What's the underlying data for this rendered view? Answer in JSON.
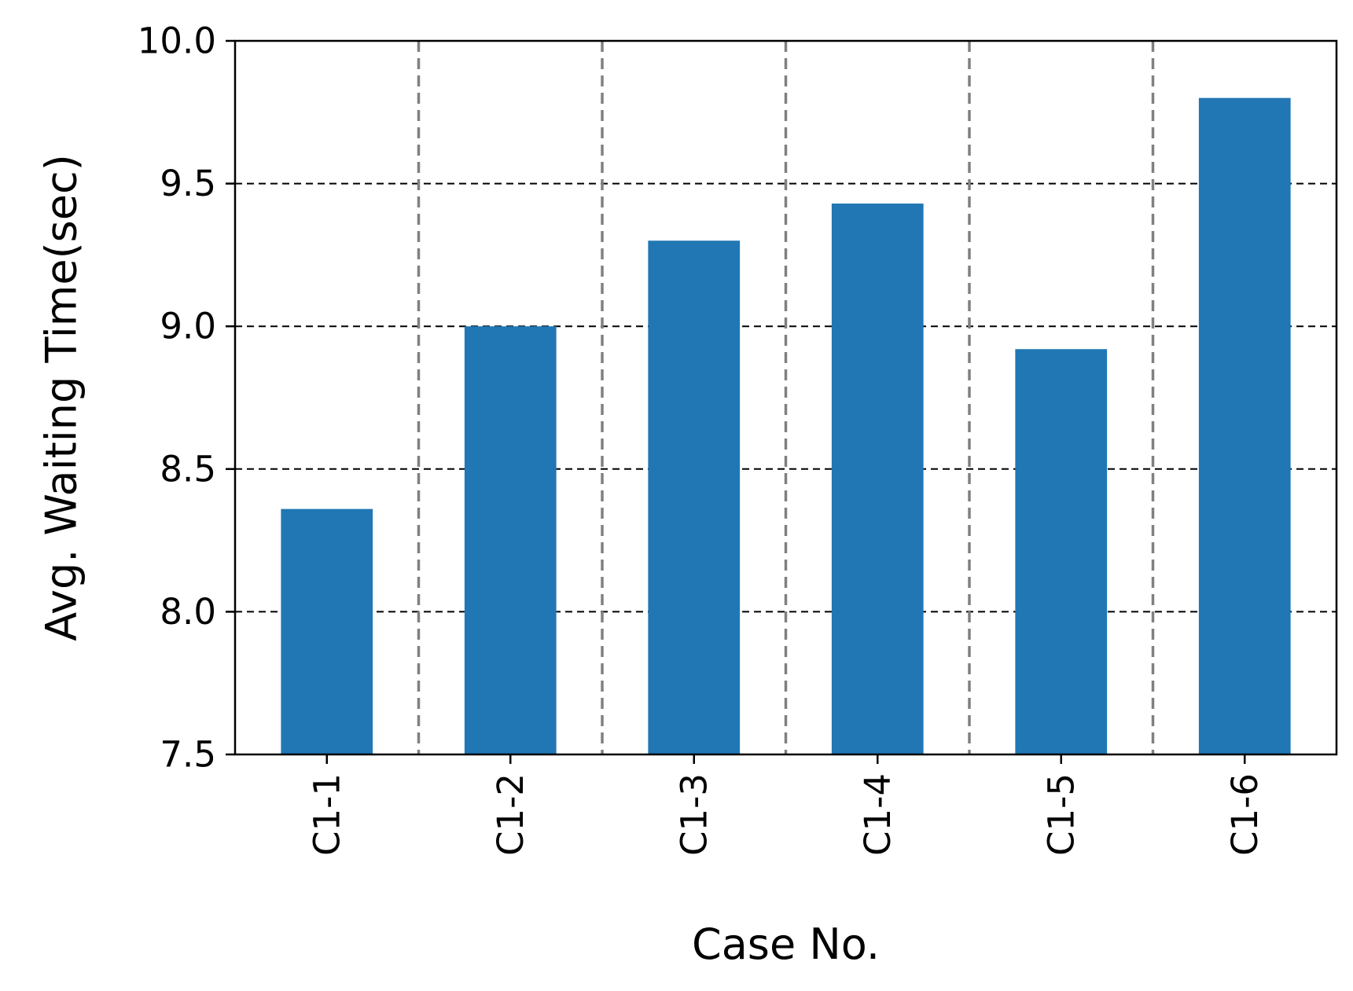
{
  "chart_data": {
    "type": "bar",
    "categories": [
      "C1-1",
      "C1-2",
      "C1-3",
      "C1-4",
      "C1-5",
      "C1-6"
    ],
    "values": [
      8.36,
      9.0,
      9.3,
      9.43,
      8.92,
      9.8
    ],
    "title": "",
    "xlabel": "Case No.",
    "ylabel": "Avg. Waiting Time(sec)",
    "ylim": [
      7.5,
      10.0
    ],
    "yticks": [
      "7.5",
      "8.0",
      "8.5",
      "9.0",
      "9.5",
      "10.0"
    ],
    "grid": {
      "horizontal": "dashed",
      "vertical_separators": "dashed"
    },
    "colors": {
      "bar": "#2077b4",
      "grid": "#000000",
      "separator": "#808080",
      "axes": "#000000"
    }
  }
}
